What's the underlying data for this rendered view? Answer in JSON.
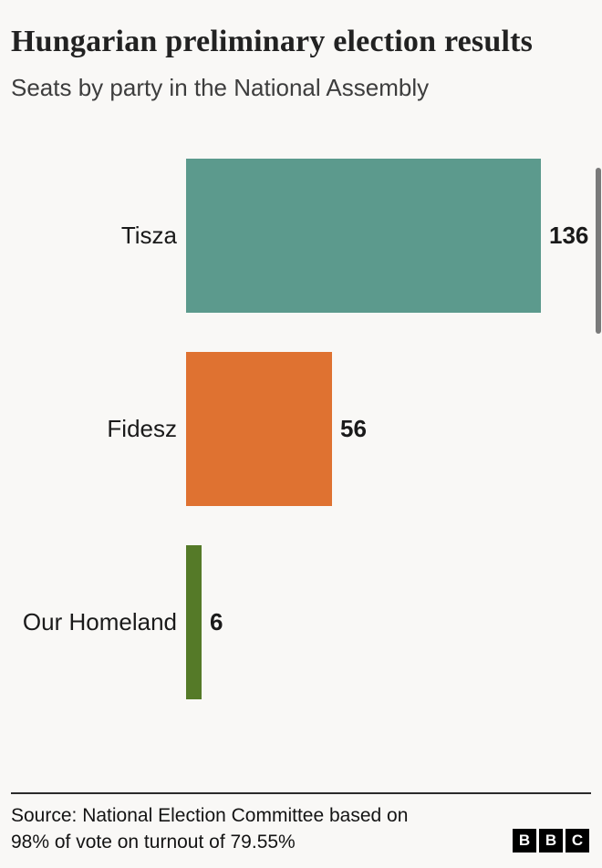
{
  "header": {
    "title": "Hungarian preliminary election results",
    "subtitle": "Seats by party in the National Assembly"
  },
  "chart_data": {
    "type": "bar",
    "orientation": "horizontal",
    "title": "Hungarian preliminary election results",
    "subtitle": "Seats by party in the National Assembly",
    "categories": [
      "Tisza",
      "Fidesz",
      "Our Homeland"
    ],
    "values": [
      136,
      56,
      6
    ],
    "bar_colors": [
      "#5c9a8d",
      "#df7231",
      "#557a28"
    ],
    "xlabel": "",
    "ylabel": "",
    "xlim": [
      0,
      136
    ],
    "grid": false,
    "legend": false,
    "value_labels": true
  },
  "footer": {
    "source_lines": [
      "Source: National Election Committee based on",
      "98% of vote on turnout of 79.55%"
    ],
    "brand_letters": [
      "B",
      "B",
      "C"
    ]
  }
}
